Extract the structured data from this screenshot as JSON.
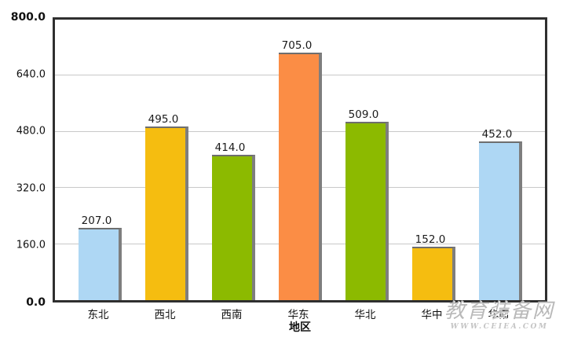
{
  "chart_data": {
    "type": "bar",
    "title": "",
    "xlabel": "地区",
    "ylabel": "",
    "categories": [
      "东北",
      "西北",
      "西南",
      "华东",
      "华北",
      "华中",
      "华南"
    ],
    "values": [
      207.0,
      495.0,
      414.0,
      705.0,
      509.0,
      152.0,
      452.0
    ],
    "value_labels": [
      "207.0",
      "495.0",
      "414.0",
      "705.0",
      "509.0",
      "152.0",
      "452.0"
    ],
    "bar_colors": [
      "#aed7f4",
      "#f5bd10",
      "#8cba00",
      "#fb8d45",
      "#8cba00",
      "#f5bd10",
      "#aed7f4"
    ],
    "ylim": [
      0,
      800
    ],
    "ytick_labels": [
      "0.0",
      "160.0",
      "320.0",
      "480.0",
      "640.0",
      "800.0"
    ],
    "ytick_values": [
      0,
      160,
      320,
      480,
      640,
      800
    ],
    "grid_values": [
      160,
      320,
      480,
      640
    ],
    "grid_on": true,
    "legend_position": "none",
    "shadow_color": "#7e7e7e",
    "plot_border_color": "#2f2f2f",
    "grid_color": "#c9c9c9"
  },
  "watermark": {
    "line1": "教育装备网",
    "line2": "WWW.CEIEA.COM"
  }
}
